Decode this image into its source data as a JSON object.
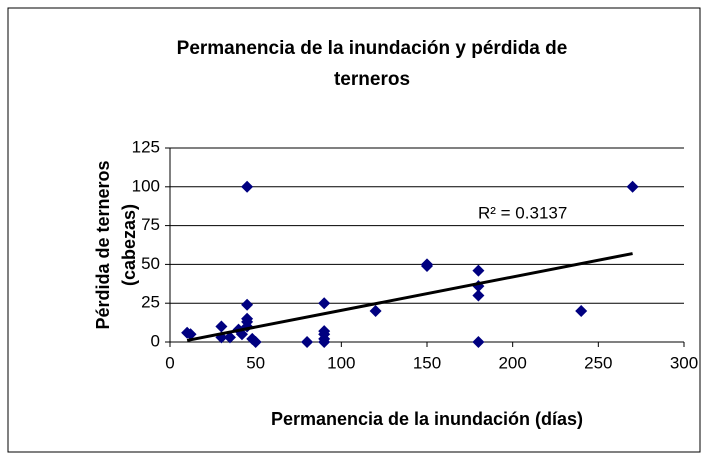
{
  "chart_data": {
    "type": "scatter",
    "title": [
      "Permanencia de la inundación y pérdida de",
      "terneros"
    ],
    "x_label": "Permanencia de la inundación (días)",
    "y_label": [
      "Pérdida de terneros",
      "(cabezas)"
    ],
    "annotation": "R² = 0.3137",
    "color": "#000080",
    "trendline": {
      "x": [
        10,
        270
      ],
      "y": [
        1,
        57
      ],
      "color": "#000000"
    },
    "series": [
      {
        "name": "Pérdida",
        "color": "#000080",
        "x": [
          10,
          12,
          30,
          30,
          35,
          40,
          42,
          45,
          45,
          45,
          45,
          45,
          48,
          50,
          80,
          90,
          90,
          90,
          90,
          90,
          120,
          150,
          150,
          180,
          180,
          180,
          180,
          240,
          270
        ],
        "values": [
          6,
          5,
          10,
          3,
          3,
          8,
          5,
          100,
          24,
          15,
          10,
          13,
          2,
          0,
          0,
          25,
          7,
          5,
          2,
          0,
          20,
          50,
          49,
          46,
          36,
          30,
          0,
          20,
          100
        ]
      }
    ],
    "xlim": [
      0,
      300
    ],
    "xticks": [
      0,
      50,
      100,
      150,
      200,
      250,
      300
    ],
    "ylim": [
      0,
      125
    ],
    "yticks": [
      0,
      25,
      50,
      75,
      100,
      125
    ],
    "grid": true
  }
}
